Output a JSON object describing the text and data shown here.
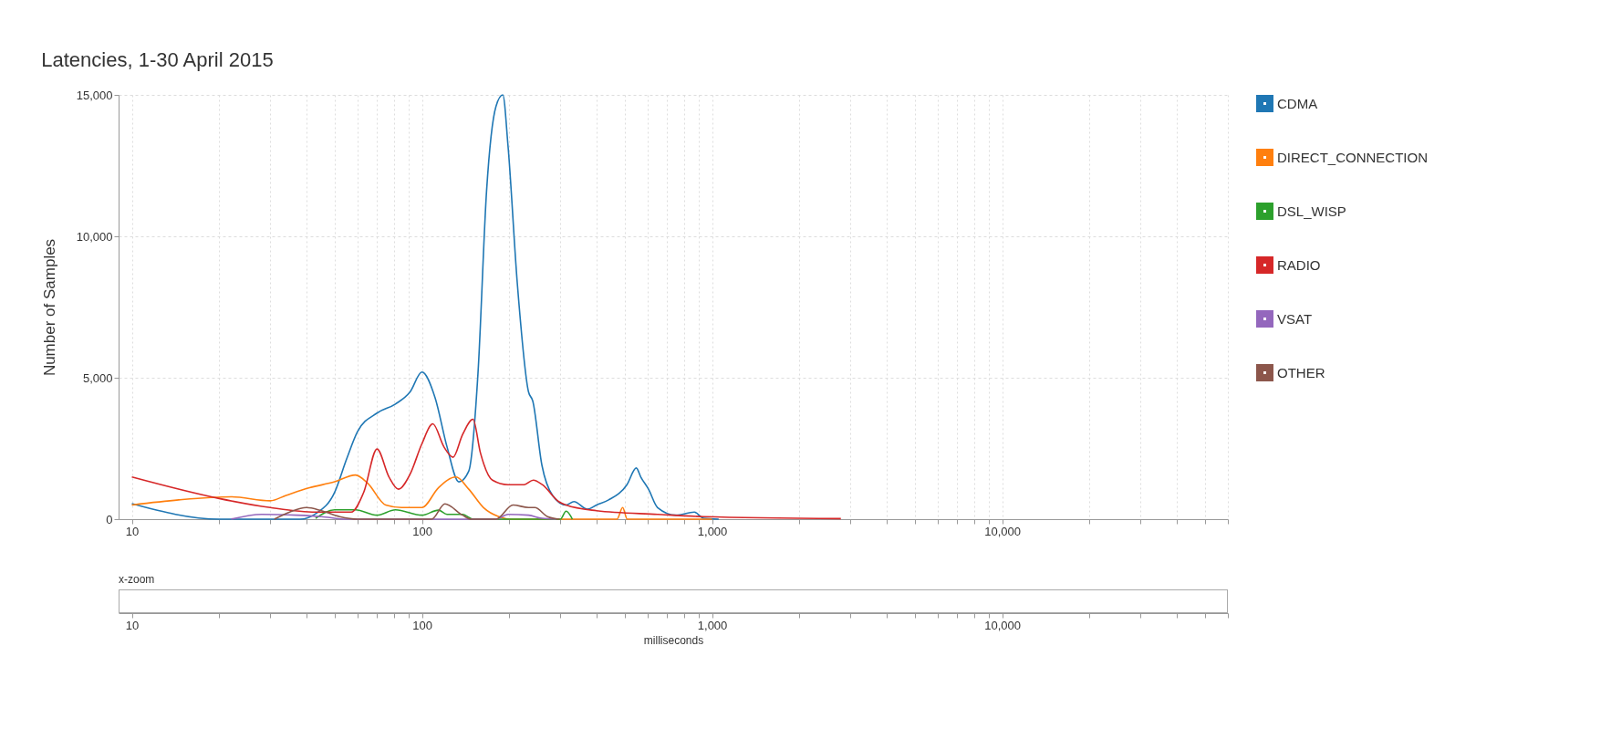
{
  "chart_data": {
    "type": "line",
    "title": "Latencies, 1-30 April 2015",
    "ylabel": "Number of Samples",
    "annotations": [
      "x-zoom",
      "milliseconds"
    ],
    "log": "x",
    "grid": true,
    "legend": "right",
    "xlim": [
      9,
      60000
    ],
    "ylim": [
      0,
      15000
    ],
    "xticks": [
      {
        "value": 10,
        "label": "10"
      },
      {
        "value": 20,
        "label": null
      },
      {
        "value": 30,
        "label": null
      },
      {
        "value": 40,
        "label": null
      },
      {
        "value": 50,
        "label": null
      },
      {
        "value": 60,
        "label": null
      },
      {
        "value": 70,
        "label": null
      },
      {
        "value": 80,
        "label": null
      },
      {
        "value": 90,
        "label": null
      },
      {
        "value": 100,
        "label": "100"
      },
      {
        "value": 200,
        "label": null
      },
      {
        "value": 300,
        "label": null
      },
      {
        "value": 400,
        "label": null
      },
      {
        "value": 500,
        "label": null
      },
      {
        "value": 600,
        "label": null
      },
      {
        "value": 700,
        "label": null
      },
      {
        "value": 800,
        "label": null
      },
      {
        "value": 900,
        "label": null
      },
      {
        "value": 1000,
        "label": "1,000"
      },
      {
        "value": 2000,
        "label": null
      },
      {
        "value": 3000,
        "label": null
      },
      {
        "value": 4000,
        "label": null
      },
      {
        "value": 5000,
        "label": null
      },
      {
        "value": 6000,
        "label": null
      },
      {
        "value": 7000,
        "label": null
      },
      {
        "value": 8000,
        "label": null
      },
      {
        "value": 9000,
        "label": null
      },
      {
        "value": 10000,
        "label": "10,000"
      },
      {
        "value": 20000,
        "label": null
      },
      {
        "value": 30000,
        "label": null
      },
      {
        "value": 40000,
        "label": null
      },
      {
        "value": 50000,
        "label": null
      },
      {
        "value": 60000,
        "label": null
      }
    ],
    "yticks": [
      0,
      {
        "value": 5000,
        "label": "5,000"
      },
      {
        "value": 10000,
        "label": "10,000"
      },
      {
        "value": 15000,
        "label": "15,000"
      }
    ],
    "series": [
      {
        "name": "CDMA",
        "color": "#1f77b4",
        "x": [
          10,
          20,
          38,
          43,
          50,
          55,
          60,
          70,
          81,
          91,
          100,
          111,
          122,
          134,
          145,
          156,
          167,
          180,
          190,
          198,
          213,
          233,
          241,
          259,
          282,
          314,
          334,
          372,
          400,
          440,
          509,
          548,
          568,
          604,
          649,
          751,
          869,
          934,
          1054
        ],
        "values": [
          550,
          0,
          0,
          190,
          950,
          2130,
          3100,
          3750,
          4070,
          4500,
          5200,
          4290,
          2560,
          1320,
          1700,
          5150,
          11600,
          14600,
          15000,
          13200,
          8380,
          4500,
          4180,
          1920,
          840,
          500,
          620,
          350,
          500,
          680,
          1220,
          1810,
          1490,
          1060,
          410,
          140,
          250,
          30,
          0
        ]
      },
      {
        "name": "DIRECT_CONNECTION",
        "color": "#ff7f0e",
        "x": [
          10,
          14.5,
          22,
          30,
          34,
          41,
          50,
          59,
          65,
          75,
          85,
          100,
          114,
          131,
          145,
          163,
          184,
          203,
          470,
          492,
          510,
          1000
        ],
        "values": [
          500,
          680,
          790,
          650,
          840,
          1110,
          1320,
          1560,
          1270,
          500,
          410,
          410,
          1110,
          1490,
          1060,
          410,
          90,
          0,
          0,
          410,
          0,
          0
        ]
      },
      {
        "name": "DSL_WISP",
        "color": "#2ca02c",
        "x": [
          43,
          50,
          59,
          70,
          81,
          100,
          114,
          122,
          138,
          150,
          300,
          314,
          330
        ],
        "values": [
          30,
          330,
          330,
          140,
          330,
          140,
          320,
          170,
          170,
          0,
          0,
          280,
          0
        ]
      },
      {
        "name": "RADIO",
        "color": "#d62728",
        "x": [
          10,
          20,
          30,
          43,
          57,
          63,
          70,
          77,
          83,
          91,
          100,
          109,
          119,
          128,
          138,
          150,
          159,
          175,
          198,
          225,
          242,
          260,
          296,
          314,
          400,
          649,
          934,
          2780
        ],
        "values": [
          1490,
          730,
          410,
          250,
          250,
          950,
          2480,
          1490,
          1060,
          1590,
          2670,
          3370,
          2560,
          2190,
          2990,
          3530,
          2350,
          1380,
          1220,
          1220,
          1380,
          1220,
          620,
          500,
          300,
          170,
          90,
          20
        ]
      },
      {
        "name": "VSAT",
        "color": "#9467bd",
        "x": [
          22,
          28,
          37,
          45,
          55,
          180,
          198,
          233,
          259,
          290
        ],
        "values": [
          0,
          170,
          140,
          90,
          0,
          0,
          170,
          140,
          30,
          0
        ]
      },
      {
        "name": "OTHER",
        "color": "#8c564b",
        "x": [
          31,
          35,
          40,
          45,
          52,
          60,
          108,
          120,
          138,
          148,
          180,
          206,
          233,
          245,
          271,
          298
        ],
        "values": [
          0,
          250,
          410,
          300,
          90,
          0,
          0,
          540,
          140,
          0,
          0,
          500,
          410,
          410,
          90,
          0
        ]
      }
    ]
  }
}
